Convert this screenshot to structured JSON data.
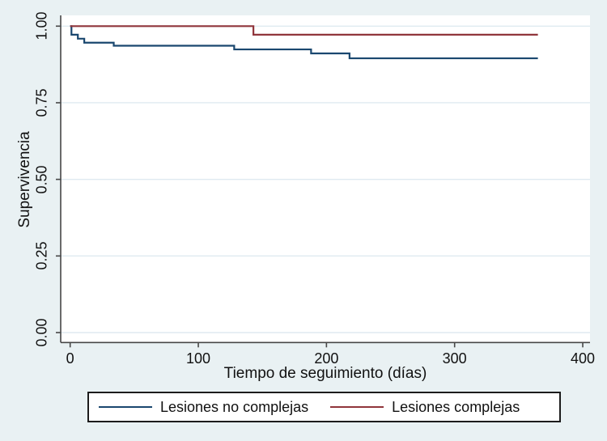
{
  "colors": {
    "background": "#e9f1f3",
    "plot_background": "#ffffff",
    "gridline": "#dfeaf0",
    "axis": "#474747",
    "navy": "#1a476f",
    "maroon": "#90353b",
    "text": "#111111"
  },
  "chart_data": {
    "type": "line",
    "subtype": "kaplan-meier-step",
    "title": "",
    "xlabel": "Tiempo de seguimiento (días)",
    "ylabel": "Supervivencia",
    "xlim": [
      0,
      400
    ],
    "ylim": [
      0.0,
      1.0
    ],
    "xticks": [
      "0",
      "100",
      "200",
      "300",
      "400"
    ],
    "xtick_values": [
      0,
      100,
      200,
      300,
      400
    ],
    "yticks": [
      "0.00",
      "0.25",
      "0.50",
      "0.75",
      "1.00"
    ],
    "ytick_values": [
      0.0,
      0.25,
      0.5,
      0.75,
      1.0
    ],
    "grid": true,
    "legend_position": "bottom",
    "end_time": 365,
    "series": [
      {
        "name": "Lesiones no complejas",
        "color_key": "navy",
        "times": [
          0,
          1,
          6,
          11,
          34,
          128,
          188,
          218
        ],
        "survival": [
          1.0,
          0.972,
          0.959,
          0.946,
          0.936,
          0.924,
          0.911,
          0.895
        ]
      },
      {
        "name": "Lesiones complejas",
        "color_key": "maroon",
        "times": [
          0,
          143
        ],
        "survival": [
          1.0,
          0.972
        ]
      }
    ]
  }
}
